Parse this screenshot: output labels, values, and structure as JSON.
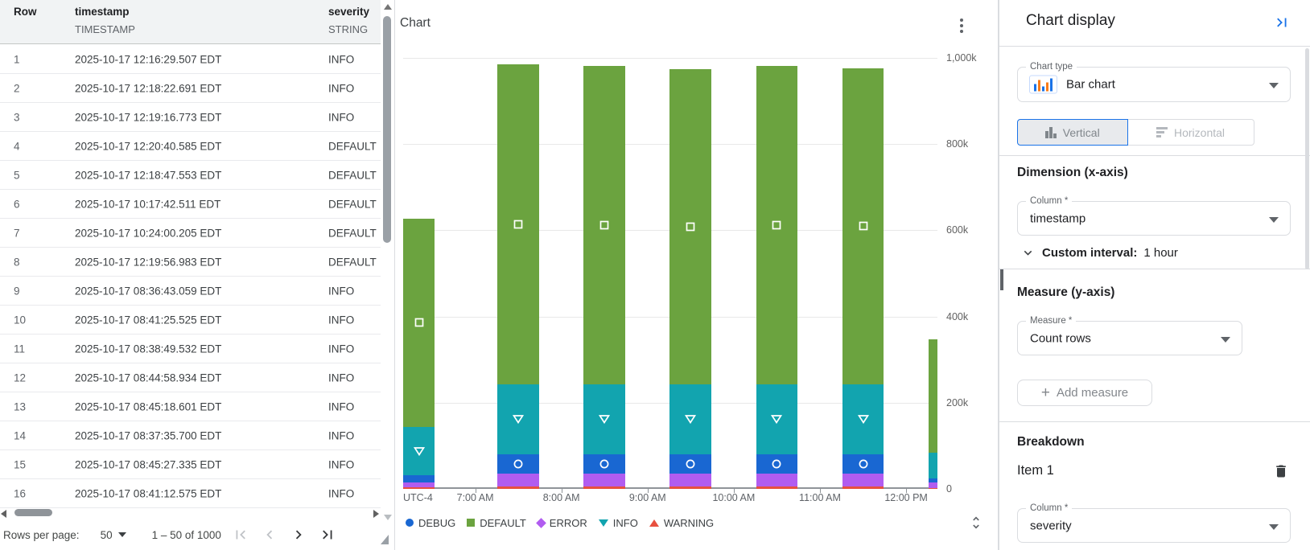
{
  "table": {
    "columns": [
      {
        "name": "Row",
        "type": ""
      },
      {
        "name": "timestamp",
        "type": "TIMESTAMP"
      },
      {
        "name": "severity",
        "type": "STRING"
      }
    ],
    "rows": [
      {
        "row": "1",
        "timestamp": "2025-10-17 12:16:29.507 EDT",
        "severity": "INFO"
      },
      {
        "row": "2",
        "timestamp": "2025-10-17 12:18:22.691 EDT",
        "severity": "INFO"
      },
      {
        "row": "3",
        "timestamp": "2025-10-17 12:19:16.773 EDT",
        "severity": "INFO"
      },
      {
        "row": "4",
        "timestamp": "2025-10-17 12:20:40.585 EDT",
        "severity": "DEFAULT"
      },
      {
        "row": "5",
        "timestamp": "2025-10-17 12:18:47.553 EDT",
        "severity": "DEFAULT"
      },
      {
        "row": "6",
        "timestamp": "2025-10-17 10:17:42.511 EDT",
        "severity": "DEFAULT"
      },
      {
        "row": "7",
        "timestamp": "2025-10-17 10:24:00.205 EDT",
        "severity": "DEFAULT"
      },
      {
        "row": "8",
        "timestamp": "2025-10-17 12:19:56.983 EDT",
        "severity": "DEFAULT"
      },
      {
        "row": "9",
        "timestamp": "2025-10-17 08:36:43.059 EDT",
        "severity": "INFO"
      },
      {
        "row": "10",
        "timestamp": "2025-10-17 08:41:25.525 EDT",
        "severity": "INFO"
      },
      {
        "row": "11",
        "timestamp": "2025-10-17 08:38:49.532 EDT",
        "severity": "INFO"
      },
      {
        "row": "12",
        "timestamp": "2025-10-17 08:44:58.934 EDT",
        "severity": "INFO"
      },
      {
        "row": "13",
        "timestamp": "2025-10-17 08:45:18.601 EDT",
        "severity": "INFO"
      },
      {
        "row": "14",
        "timestamp": "2025-10-17 08:37:35.700 EDT",
        "severity": "INFO"
      },
      {
        "row": "15",
        "timestamp": "2025-10-17 08:45:27.335 EDT",
        "severity": "INFO"
      },
      {
        "row": "16",
        "timestamp": "2025-10-17 08:41:12.575 EDT",
        "severity": "INFO"
      }
    ],
    "footer": {
      "rows_per_page_label": "Rows per page:",
      "page_size": "50",
      "range": "1 – 50 of 1000"
    }
  },
  "chart_panel": {
    "title": "Chart"
  },
  "chart_data": {
    "type": "bar",
    "stacked": true,
    "title": "Chart",
    "xlabel": "",
    "ylabel": "",
    "x_axis": {
      "timezone_label": "UTC-4",
      "ticks": [
        "7:00 AM",
        "8:00 AM",
        "9:00 AM",
        "10:00 AM",
        "11:00 AM",
        "12:00 PM"
      ]
    },
    "y_axis": {
      "tick_labels": [
        "1,000k",
        "800k",
        "600k",
        "400k",
        "200k",
        "0"
      ],
      "tick_values": [
        1000,
        800,
        600,
        400,
        200,
        0
      ],
      "max": 1000,
      "unit": "thousands of rows",
      "grid": true
    },
    "stack_order_bottom_to_top": [
      "WARNING",
      "ERROR",
      "DEBUG",
      "INFO",
      "DEFAULT"
    ],
    "series_colors": {
      "DEBUG": "#1967d2",
      "DEFAULT": "#6ba33f",
      "ERROR": "#b15cf0",
      "INFO": "#12a4af",
      "WARNING": "#e8503f"
    },
    "marker_shapes": {
      "DEBUG": "circle",
      "DEFAULT": "square",
      "ERROR": "diamond",
      "INFO": "triangle-down",
      "WARNING": "triangle-up"
    },
    "legend": [
      {
        "label": "DEBUG",
        "shape": "circle"
      },
      {
        "label": "DEFAULT",
        "shape": "square"
      },
      {
        "label": "ERROR",
        "shape": "diamond"
      },
      {
        "label": "INFO",
        "shape": "triangle-down"
      },
      {
        "label": "WARNING",
        "shape": "triangle-up"
      }
    ],
    "legend_position": "bottom",
    "bars": [
      {
        "bucket": "6:00 AM",
        "clip": "left",
        "total_k": 627,
        "values_k": {
          "WARNING": 4,
          "ERROR": 11,
          "DEBUG": 17,
          "INFO": 112,
          "DEFAULT": 483
        },
        "markers": [
          "DEFAULT",
          "INFO"
        ]
      },
      {
        "bucket": "7:00 AM",
        "clip": "none",
        "total_k": 985,
        "values_k": {
          "WARNING": 6,
          "ERROR": 30,
          "DEBUG": 45,
          "INFO": 162,
          "DEFAULT": 742
        },
        "markers": [
          "DEFAULT",
          "INFO",
          "DEBUG"
        ]
      },
      {
        "bucket": "8:00 AM",
        "clip": "none",
        "total_k": 981,
        "values_k": {
          "WARNING": 6,
          "ERROR": 30,
          "DEBUG": 45,
          "INFO": 162,
          "DEFAULT": 738
        },
        "markers": [
          "DEFAULT",
          "INFO",
          "DEBUG"
        ]
      },
      {
        "bucket": "9:00 AM",
        "clip": "none",
        "total_k": 974,
        "values_k": {
          "WARNING": 6,
          "ERROR": 30,
          "DEBUG": 44,
          "INFO": 163,
          "DEFAULT": 731
        },
        "markers": [
          "DEFAULT",
          "INFO",
          "DEBUG"
        ]
      },
      {
        "bucket": "10:00 AM",
        "clip": "none",
        "total_k": 981,
        "values_k": {
          "WARNING": 6,
          "ERROR": 30,
          "DEBUG": 45,
          "INFO": 162,
          "DEFAULT": 738
        },
        "markers": [
          "DEFAULT",
          "INFO",
          "DEBUG"
        ]
      },
      {
        "bucket": "11:00 AM",
        "clip": "none",
        "total_k": 976,
        "values_k": {
          "WARNING": 6,
          "ERROR": 30,
          "DEBUG": 45,
          "INFO": 162,
          "DEFAULT": 733
        },
        "markers": [
          "DEFAULT",
          "INFO",
          "DEBUG"
        ]
      },
      {
        "bucket": "12:00 PM",
        "clip": "right",
        "total_k": 347,
        "values_k": {
          "WARNING": 2,
          "ERROR": 13,
          "DEBUG": 9,
          "INFO": 60,
          "DEFAULT": 263
        },
        "markers": []
      }
    ]
  },
  "settings": {
    "title": "Chart display",
    "chart_type": {
      "label": "Chart type",
      "value": "Bar chart"
    },
    "orientation": {
      "vertical_label": "Vertical",
      "horizontal_label": "Horizontal",
      "selected": "Vertical"
    },
    "dimension": {
      "heading": "Dimension (x-axis)",
      "column_label": "Column *",
      "column_value": "timestamp",
      "interval_label": "Custom interval:",
      "interval_value": "1 hour"
    },
    "measure": {
      "heading": "Measure (y-axis)",
      "label": "Measure *",
      "value": "Count rows",
      "add_button_label": "Add measure"
    },
    "breakdown": {
      "heading": "Breakdown",
      "item_label": "Item 1",
      "column_label": "Column *",
      "column_value": "severity"
    },
    "colors": {
      "accent": "#1a73e8",
      "toggle_selected_bg": "#e8eaed",
      "field_border": "#dadce0"
    }
  }
}
